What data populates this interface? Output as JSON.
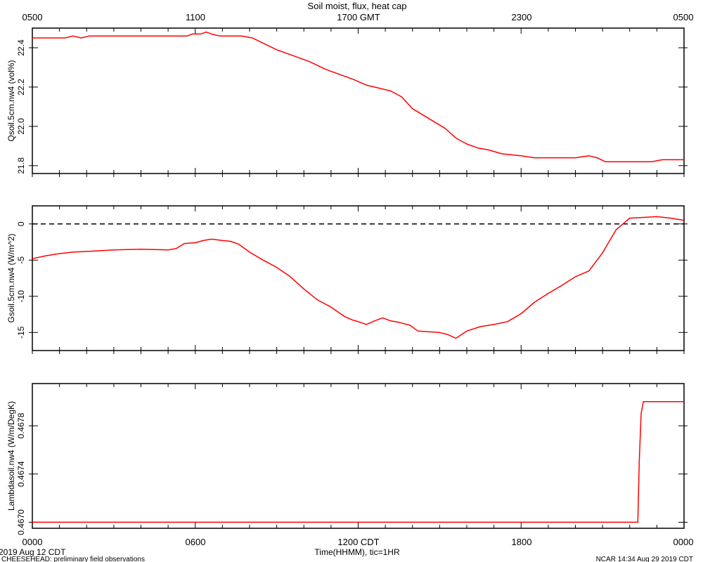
{
  "header": {
    "title": "Soil moist, flux, heat cap",
    "gmt_ticks": [
      "0500",
      "1100",
      "1700 GMT",
      "2300",
      "0500"
    ]
  },
  "footer": {
    "cdt_ticks": [
      "0000",
      "0600",
      "1200 CDT",
      "1800",
      "0000"
    ],
    "date": "2019 Aug 12 CDT",
    "xlabel": "Time(HHMM), tic=1HR",
    "project": "CHEESEHEAD: preliminary field observations",
    "ncar": "NCAR 14:34 Aug 29 2019 CDT"
  },
  "colors": {
    "line": "#ff0000",
    "axis": "#000000"
  },
  "chart_data": [
    {
      "type": "line",
      "ylabel": "Qsoil.5cm.nw4 (vol%)",
      "xlim": [
        0,
        24
      ],
      "ylim": [
        21.76,
        22.5
      ],
      "yticks": [
        21.8,
        22.0,
        22.2,
        22.4
      ],
      "ytick_labels": [
        "21.8",
        "22.0",
        "22.2",
        "22.4"
      ],
      "x": [
        0,
        0.5,
        1.2,
        1.5,
        1.8,
        2.1,
        3.0,
        4.0,
        5.0,
        5.7,
        5.9,
        6.2,
        6.4,
        6.6,
        6.9,
        7.3,
        7.7,
        8.1,
        8.4,
        9.0,
        9.6,
        10.0,
        10.2,
        10.8,
        11.2,
        11.8,
        12.3,
        12.6,
        13.2,
        13.6,
        14.0,
        14.6,
        15.2,
        15.6,
        16.0,
        16.4,
        16.8,
        17.3,
        18.0,
        18.5,
        19.0,
        19.5,
        20.0,
        20.5,
        20.8,
        21.1,
        21.5,
        22.0,
        22.5,
        22.8,
        23.2,
        23.5,
        24.0
      ],
      "series": [
        {
          "values": [
            22.45,
            22.45,
            22.45,
            22.46,
            22.45,
            22.46,
            22.46,
            22.46,
            22.46,
            22.46,
            22.47,
            22.47,
            22.48,
            22.47,
            22.46,
            22.46,
            22.46,
            22.45,
            22.43,
            22.39,
            22.36,
            22.34,
            22.33,
            22.29,
            22.27,
            22.24,
            22.21,
            22.2,
            22.18,
            22.15,
            22.09,
            22.04,
            21.99,
            21.94,
            21.91,
            21.89,
            21.88,
            21.86,
            21.85,
            21.84,
            21.84,
            21.84,
            21.84,
            21.85,
            21.84,
            21.82,
            21.82,
            21.82,
            21.82,
            21.82,
            21.83,
            21.83,
            21.83
          ]
        }
      ]
    },
    {
      "type": "line",
      "ylabel": "Gsoil.5cm.nw4 (W/m^2)",
      "xlim": [
        0,
        24
      ],
      "ylim": [
        -17.5,
        2.5
      ],
      "yticks": [
        -15,
        -10,
        -5,
        0
      ],
      "ytick_labels": [
        "-15",
        "-10",
        "-5",
        "0"
      ],
      "zero_line": true,
      "x": [
        0,
        0.5,
        1.0,
        1.5,
        2.0,
        3.0,
        4.0,
        5.0,
        5.3,
        5.6,
        6.0,
        6.3,
        6.6,
        7.0,
        7.3,
        7.6,
        8.0,
        8.5,
        9.0,
        9.5,
        10.0,
        10.5,
        11.0,
        11.5,
        11.8,
        12.0,
        12.3,
        12.6,
        12.9,
        13.2,
        13.5,
        13.9,
        14.2,
        14.6,
        15.0,
        15.3,
        15.6,
        16.0,
        16.5,
        17.0,
        17.5,
        18.0,
        18.5,
        19.0,
        19.5,
        20.0,
        20.5,
        21.0,
        21.5,
        22.0,
        22.5,
        23.0,
        23.5,
        24.0
      ],
      "series": [
        {
          "values": [
            -4.8,
            -4.4,
            -4.1,
            -3.9,
            -3.8,
            -3.6,
            -3.5,
            -3.6,
            -3.4,
            -2.7,
            -2.6,
            -2.3,
            -2.1,
            -2.3,
            -2.4,
            -2.8,
            -3.9,
            -5.0,
            -6.0,
            -7.3,
            -9.0,
            -10.5,
            -11.5,
            -12.8,
            -13.3,
            -13.5,
            -13.9,
            -13.4,
            -13.0,
            -13.4,
            -13.6,
            -14.0,
            -14.8,
            -14.9,
            -15.0,
            -15.3,
            -15.8,
            -14.8,
            -14.2,
            -13.9,
            -13.5,
            -12.4,
            -10.8,
            -9.6,
            -8.5,
            -7.3,
            -6.5,
            -4.0,
            -0.8,
            0.8,
            0.9,
            1.0,
            0.8,
            0.5
          ]
        }
      ]
    },
    {
      "type": "line",
      "ylabel": "Lambdasoil.nw4 (W/m/DegK)",
      "xlim": [
        0,
        24
      ],
      "ylim": [
        0.46695,
        0.46815
      ],
      "yticks": [
        0.467,
        0.4674,
        0.4678
      ],
      "ytick_labels": [
        "0.4670",
        "0.4674",
        "0.4678"
      ],
      "x": [
        0,
        22.3,
        22.35,
        22.42,
        22.5,
        24.0
      ],
      "series": [
        {
          "values": [
            0.467,
            0.467,
            0.4675,
            0.4679,
            0.468,
            0.468
          ]
        }
      ]
    }
  ]
}
